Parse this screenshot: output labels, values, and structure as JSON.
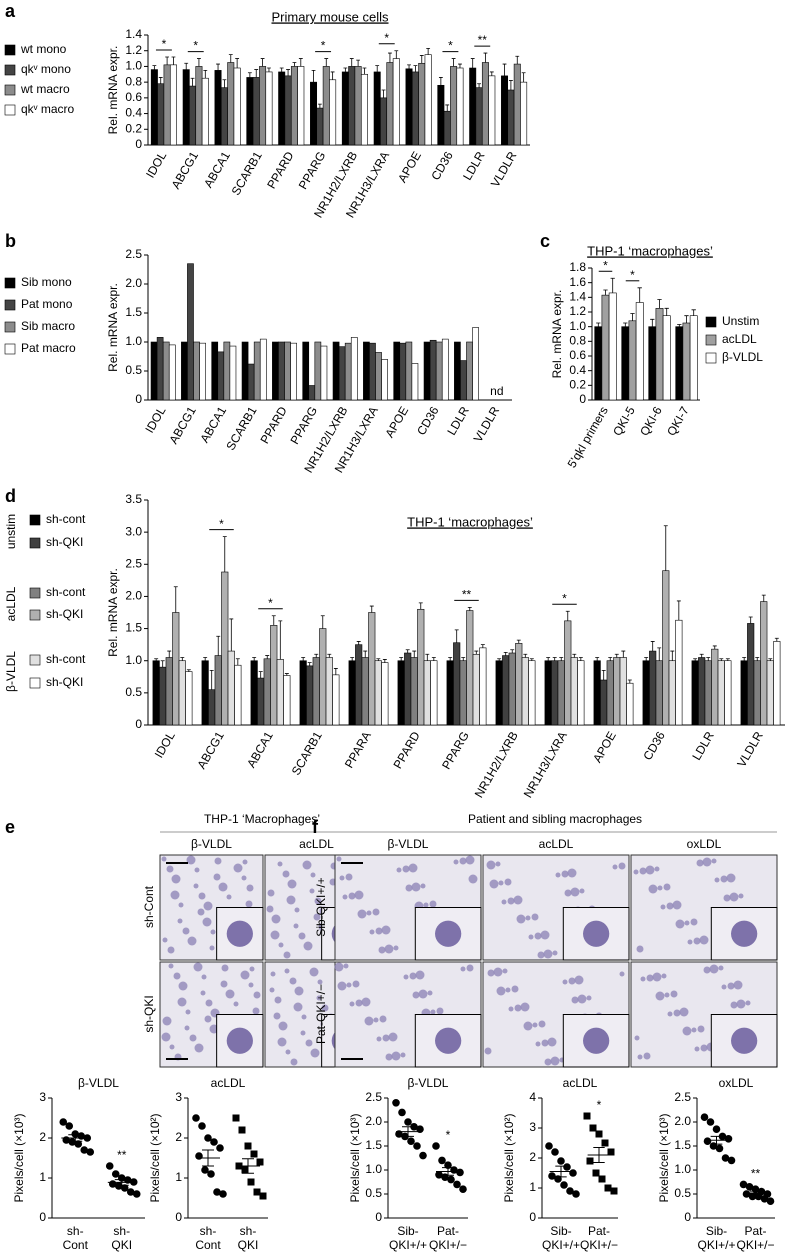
{
  "chart_data": [
    {
      "type": "bar",
      "panel": "a",
      "title": "Primary mouse cells",
      "ylabel": "Rel. mRNA expr.",
      "categories": [
        "IDOL",
        "ABCG1",
        "ABCA1",
        "SCARB1",
        "PPARD",
        "PPARG",
        "NR1H2/LXRB",
        "NR1H3/LXRA",
        "APOE",
        "CD36",
        "LDLR",
        "VLDLR"
      ],
      "series": [
        {
          "name": "wt mono",
          "color": "#000000",
          "values": [
            0.96,
            0.96,
            0.95,
            0.86,
            0.93,
            0.8,
            0.93,
            0.93,
            0.97,
            0.76,
            0.98,
            0.88
          ],
          "errors": [
            0.05,
            0.08,
            0.08,
            0.06,
            0.05,
            0.15,
            0.05,
            0.08,
            0.05,
            0.1,
            0.12,
            0.15
          ]
        },
        {
          "name": "qkᵛ mono",
          "color": "#444444",
          "values": [
            0.78,
            0.75,
            0.73,
            0.86,
            0.88,
            0.47,
            1.0,
            0.6,
            0.93,
            0.43,
            0.73,
            0.7
          ],
          "errors": [
            0.08,
            0.1,
            0.1,
            0.1,
            0.08,
            0.05,
            0.1,
            0.1,
            0.08,
            0.08,
            0.05,
            0.12
          ]
        },
        {
          "name": "wt macro",
          "color": "#8c8c8c",
          "values": [
            1.02,
            1.0,
            1.05,
            1.0,
            1.0,
            1.0,
            1.0,
            1.05,
            1.04,
            1.0,
            1.05,
            1.03
          ],
          "errors": [
            0.1,
            0.1,
            0.1,
            0.1,
            0.05,
            0.1,
            0.08,
            0.12,
            0.1,
            0.1,
            0.12,
            0.1
          ]
        },
        {
          "name": "qkᵛ macro",
          "color": "#ffffff",
          "values": [
            1.02,
            0.85,
            0.98,
            0.93,
            1.0,
            0.83,
            0.9,
            1.1,
            1.15,
            0.98,
            0.88,
            0.8
          ],
          "errors": [
            0.1,
            0.1,
            0.12,
            0.05,
            0.1,
            0.1,
            0.08,
            0.1,
            0.08,
            0.05,
            0.05,
            0.12
          ]
        }
      ],
      "ylim": [
        0,
        1.4
      ],
      "yticks": [
        0,
        0.2,
        0.4,
        0.6,
        0.8,
        {
          "value": 1,
          "label": "1.0"
        },
        1.2,
        1.4
      ],
      "annotations": [
        {
          "label": "*",
          "category": "IDOL"
        },
        {
          "label": "*",
          "category": "ABCG1"
        },
        {
          "label": "*",
          "category": "PPARG"
        },
        {
          "label": "*",
          "category": "NR1H3/LXRA"
        },
        {
          "label": "*",
          "category": "CD36"
        },
        {
          "label": "**",
          "category": "LDLR"
        }
      ]
    },
    {
      "type": "bar",
      "panel": "b",
      "ylabel": "Rel. mRNA expr.",
      "categories": [
        "IDOL",
        "ABCG1",
        "ABCA1",
        "SCARB1",
        "PPARD",
        "PPARG",
        "NR1H2/LXRB",
        "NR1H3/LXRA",
        "APOE",
        "CD36",
        "LDLR",
        "VLDLR"
      ],
      "series": [
        {
          "name": "Sib mono",
          "color": "#000000",
          "values": [
            1.0,
            1.0,
            1.0,
            1.0,
            1.0,
            1.0,
            1.0,
            1.0,
            1.0,
            1.0,
            1.0,
            null
          ]
        },
        {
          "name": "Pat mono",
          "color": "#444444",
          "values": [
            1.08,
            2.35,
            0.83,
            0.62,
            1.0,
            0.25,
            0.92,
            0.98,
            0.98,
            1.03,
            0.68,
            null
          ]
        },
        {
          "name": "Sib macro",
          "color": "#8c8c8c",
          "values": [
            1.0,
            1.0,
            1.0,
            1.0,
            1.0,
            1.0,
            0.98,
            0.82,
            1.0,
            1.0,
            1.0,
            null
          ]
        },
        {
          "name": "Pat macro",
          "color": "#ffffff",
          "values": [
            0.95,
            0.98,
            0.93,
            1.05,
            0.98,
            0.93,
            1.08,
            0.7,
            0.63,
            1.05,
            1.25,
            null
          ]
        }
      ],
      "ylim": [
        0,
        2.5
      ],
      "yticks": [
        0,
        0.5,
        {
          "value": 1,
          "label": "1.0"
        },
        1.5,
        {
          "value": 2,
          "label": "2.0"
        },
        2.5
      ],
      "annotations": [
        {
          "label": "nd",
          "category": "VLDLR"
        }
      ]
    },
    {
      "type": "bar",
      "panel": "c",
      "title": "THP-1 ‘macrophages’",
      "ylabel": "Rel. mRNA expr.",
      "categories": [
        "5'qkI primers",
        "QKI-5",
        "QKI-6",
        "QKI-7"
      ],
      "series": [
        {
          "name": "Unstim",
          "color": "#000000",
          "values": [
            1.0,
            1.0,
            1.0,
            1.0
          ],
          "errors": [
            0.05,
            0.05,
            0.1,
            0.03
          ]
        },
        {
          "name": "acLDL",
          "color": "#a0a0a0",
          "values": [
            1.43,
            1.08,
            1.25,
            1.05
          ],
          "errors": [
            0.07,
            0.1,
            0.12,
            0.1
          ]
        },
        {
          "name": "β-VLDL",
          "color": "#ffffff",
          "values": [
            1.46,
            1.33,
            1.15,
            1.15
          ],
          "errors": [
            0.2,
            0.2,
            0.1,
            0.08
          ]
        }
      ],
      "ylim": [
        0,
        1.8
      ],
      "yticks": [
        0,
        0.2,
        0.4,
        0.6,
        0.8,
        {
          "value": 1,
          "label": "1.0"
        },
        1.2,
        1.4,
        1.6,
        1.8
      ],
      "annotations": [
        {
          "label": "*",
          "category": "5'qkI primers"
        },
        {
          "label": "*",
          "category": "QKI-5"
        }
      ]
    },
    {
      "type": "bar",
      "panel": "d",
      "title": "THP-1 ‘macrophages’",
      "ylabel": "Rel. mRNA expr.",
      "categories": [
        "IDOL",
        "ABCG1",
        "ABCA1",
        "SCARB1",
        "PPARA",
        "PPARD",
        "PPARG",
        "NR1H2/LXRB",
        "NR1H3/LXRA",
        "APOE",
        "CD36",
        "LDLR",
        "VLDLR"
      ],
      "series": [
        {
          "name": "sh-cont",
          "group": "unstim",
          "color": "#000000",
          "values": [
            1.0,
            1.0,
            1.0,
            1.0,
            1.0,
            1.0,
            1.0,
            1.0,
            1.0,
            1.0,
            1.0,
            1.0,
            1.0
          ],
          "errors": [
            0.03,
            0.05,
            0.05,
            0.05,
            0.05,
            0.05,
            0.05,
            0.03,
            0.05,
            0.05,
            0.05,
            0.03,
            0.05
          ]
        },
        {
          "name": "sh-QKI",
          "group": "unstim",
          "color": "#404040",
          "values": [
            0.9,
            0.55,
            0.73,
            0.92,
            1.25,
            1.12,
            1.28,
            1.08,
            1.0,
            0.7,
            1.15,
            1.05,
            1.58
          ],
          "errors": [
            0.1,
            0.3,
            0.1,
            0.05,
            0.05,
            0.05,
            0.2,
            0.05,
            0.05,
            0.15,
            0.15,
            0.05,
            0.1
          ]
        },
        {
          "name": "sh-cont",
          "group": "acLDL",
          "color": "#808080",
          "values": [
            1.05,
            1.08,
            1.03,
            1.05,
            1.05,
            1.05,
            1.0,
            1.12,
            1.0,
            1.0,
            1.0,
            1.0,
            1.0
          ],
          "errors": [
            0.1,
            0.3,
            0.05,
            0.05,
            0.1,
            0.1,
            0.05,
            0.05,
            0.05,
            0.05,
            0.2,
            0.05,
            0.05
          ]
        },
        {
          "name": "sh-QKI",
          "group": "acLDL",
          "color": "#b0b0b0",
          "values": [
            1.75,
            2.38,
            1.55,
            1.5,
            1.75,
            1.8,
            1.78,
            1.27,
            1.62,
            1.05,
            2.4,
            1.18,
            1.92
          ],
          "errors": [
            0.4,
            0.55,
            0.15,
            0.2,
            0.1,
            0.1,
            0.05,
            0.05,
            0.15,
            0.05,
            0.7,
            0.05,
            0.1
          ]
        },
        {
          "name": "sh-cont",
          "group": "β-VLDL",
          "color": "#e0e0e0",
          "values": [
            1.0,
            1.15,
            1.02,
            1.05,
            1.0,
            1.0,
            1.1,
            1.05,
            1.05,
            1.05,
            1.0,
            1.0,
            1.0
          ],
          "errors": [
            0.05,
            0.5,
            0.6,
            0.05,
            0.03,
            0.1,
            0.05,
            0.05,
            0.05,
            0.1,
            0.15,
            0.03,
            0.03
          ]
        },
        {
          "name": "sh-QKI",
          "group": "β-VLDL",
          "color": "#ffffff",
          "values": [
            0.83,
            0.93,
            0.77,
            0.78,
            0.97,
            1.0,
            1.2,
            1.0,
            1.0,
            0.65,
            1.63,
            1.0,
            1.3
          ],
          "errors": [
            0.03,
            0.1,
            0.03,
            0.1,
            0.05,
            0.05,
            0.05,
            0.03,
            0.05,
            0.05,
            0.3,
            0.03,
            0.05
          ]
        }
      ],
      "ylim": [
        0,
        3.5
      ],
      "yticks": [
        0,
        0.5,
        {
          "value": 1,
          "label": "1.0"
        },
        1.5,
        {
          "value": 2,
          "label": "2.0"
        },
        2.5,
        {
          "value": 3,
          "label": "3.0"
        },
        3.5
      ],
      "annotations": [
        {
          "label": "*",
          "category": "ABCG1"
        },
        {
          "label": "*",
          "category": "ABCA1"
        },
        {
          "label": "**",
          "category": "PPARG"
        },
        {
          "label": "*",
          "category": "NR1H3/LXRA"
        }
      ]
    },
    {
      "type": "scatter",
      "title": "β-VLDL",
      "ylabel": "Pixels/cell (×10³)",
      "categories": [
        "sh-Cont",
        "sh-QKI"
      ],
      "markers": [
        "circle",
        "circle"
      ],
      "values": [
        [
          2.4,
          2.3,
          2.1,
          2.05,
          2.0,
          1.95,
          1.9,
          1.85,
          1.7,
          1.65
        ],
        [
          1.3,
          1.1,
          1.0,
          0.95,
          0.9,
          0.85,
          0.8,
          0.75,
          0.65,
          0.6
        ]
      ],
      "means": [
        2.0,
        0.89
      ],
      "sems": [
        0.08,
        0.07
      ],
      "ylim": [
        0,
        3
      ],
      "yticks": [
        0,
        1,
        2,
        3
      ],
      "annotations": [
        {
          "label": "**",
          "category": "sh-QKI"
        }
      ]
    },
    {
      "type": "scatter",
      "title": "acLDL",
      "ylabel": "Pixels/cell (×10²)",
      "categories": [
        "sh-Cont",
        "sh-QKI"
      ],
      "markers": [
        "circle",
        "square"
      ],
      "values": [
        [
          2.5,
          2.3,
          2.0,
          1.9,
          1.75,
          1.55,
          1.2,
          1.1,
          0.65,
          0.6
        ],
        [
          2.5,
          2.2,
          1.8,
          1.6,
          1.4,
          1.3,
          1.2,
          0.9,
          0.65,
          0.55
        ]
      ],
      "means": [
        1.5,
        1.3
      ],
      "sems": [
        0.2,
        0.18
      ],
      "ylim": [
        0,
        3
      ],
      "yticks": [
        0,
        1,
        2,
        3
      ]
    },
    {
      "type": "scatter",
      "title": "β-VLDL",
      "ylabel": "Pixels/cell (×10³)",
      "categories": [
        "Sib-QKI+/+",
        "Pat-QKI+/−"
      ],
      "markers": [
        "circle",
        "circle"
      ],
      "values": [
        [
          2.4,
          2.2,
          2.0,
          1.9,
          1.85,
          1.75,
          1.7,
          1.6,
          1.5,
          1.3
        ],
        [
          1.5,
          1.2,
          1.1,
          1.0,
          0.95,
          0.9,
          0.85,
          0.8,
          0.7,
          0.6
        ]
      ],
      "means": [
        1.8,
        0.97
      ],
      "sems": [
        0.1,
        0.08
      ],
      "ylim": [
        0,
        2.5
      ],
      "yticks": [
        0,
        0.5,
        {
          "value": 1,
          "label": "1.0"
        },
        1.5,
        {
          "value": 2,
          "label": "2.0"
        },
        2.5
      ],
      "annotations": [
        {
          "label": "*",
          "category": "Pat-QKI+/−"
        }
      ]
    },
    {
      "type": "scatter",
      "title": "acLDL",
      "ylabel": "Pixels/cell (×10²)",
      "categories": [
        "Sib-QKI+/+",
        "Pat-QKI+/−"
      ],
      "markers": [
        "circle",
        "square"
      ],
      "values": [
        [
          2.4,
          2.2,
          1.9,
          1.7,
          1.5,
          1.4,
          1.3,
          1.1,
          0.9,
          0.8
        ],
        [
          3.4,
          3.0,
          2.8,
          2.5,
          2.2,
          1.9,
          1.5,
          1.3,
          1.0,
          0.9
        ]
      ],
      "means": [
        1.55,
        2.1
      ],
      "sems": [
        0.18,
        0.25
      ],
      "ylim": [
        0,
        4
      ],
      "yticks": [
        0,
        1,
        2,
        3,
        4
      ],
      "annotations": [
        {
          "label": "*",
          "category": "Pat-QKI+/−"
        }
      ]
    },
    {
      "type": "scatter",
      "title": "oxLDL",
      "ylabel": "Pixels/cell (×10³)",
      "categories": [
        "Sib-QKI+/+",
        "Pat-QKI+/−"
      ],
      "markers": [
        "circle",
        "circle"
      ],
      "values": [
        [
          2.1,
          2.0,
          1.85,
          1.7,
          1.65,
          1.6,
          1.5,
          1.45,
          1.25,
          1.2
        ],
        [
          0.7,
          0.65,
          0.6,
          0.55,
          0.5,
          0.5,
          0.45,
          0.45,
          0.4,
          0.35
        ]
      ],
      "means": [
        1.62,
        0.52
      ],
      "sems": [
        0.08,
        0.04
      ],
      "ylim": [
        0,
        2.5
      ],
      "yticks": [
        0,
        0.5,
        {
          "value": 1,
          "label": "1.0"
        },
        1.5,
        {
          "value": 2,
          "label": "2.0"
        },
        2.5
      ],
      "annotations": [
        {
          "label": "**",
          "category": "Pat-QKI+/−"
        }
      ]
    }
  ],
  "micrographs": [
    {
      "panel": "e",
      "title": "THP-1 ‘Macrophages’",
      "columns": [
        "β-VLDL",
        "acLDL"
      ],
      "rows": [
        "sh-Cont",
        "sh-QKI"
      ]
    },
    {
      "panel": "f",
      "title": "Patient and sibling macrophages",
      "columns": [
        "β-VLDL",
        "acLDL",
        "oxLDL"
      ],
      "rows": [
        "Sib-QKI+/+",
        "Pat-QKI+/−"
      ]
    }
  ]
}
